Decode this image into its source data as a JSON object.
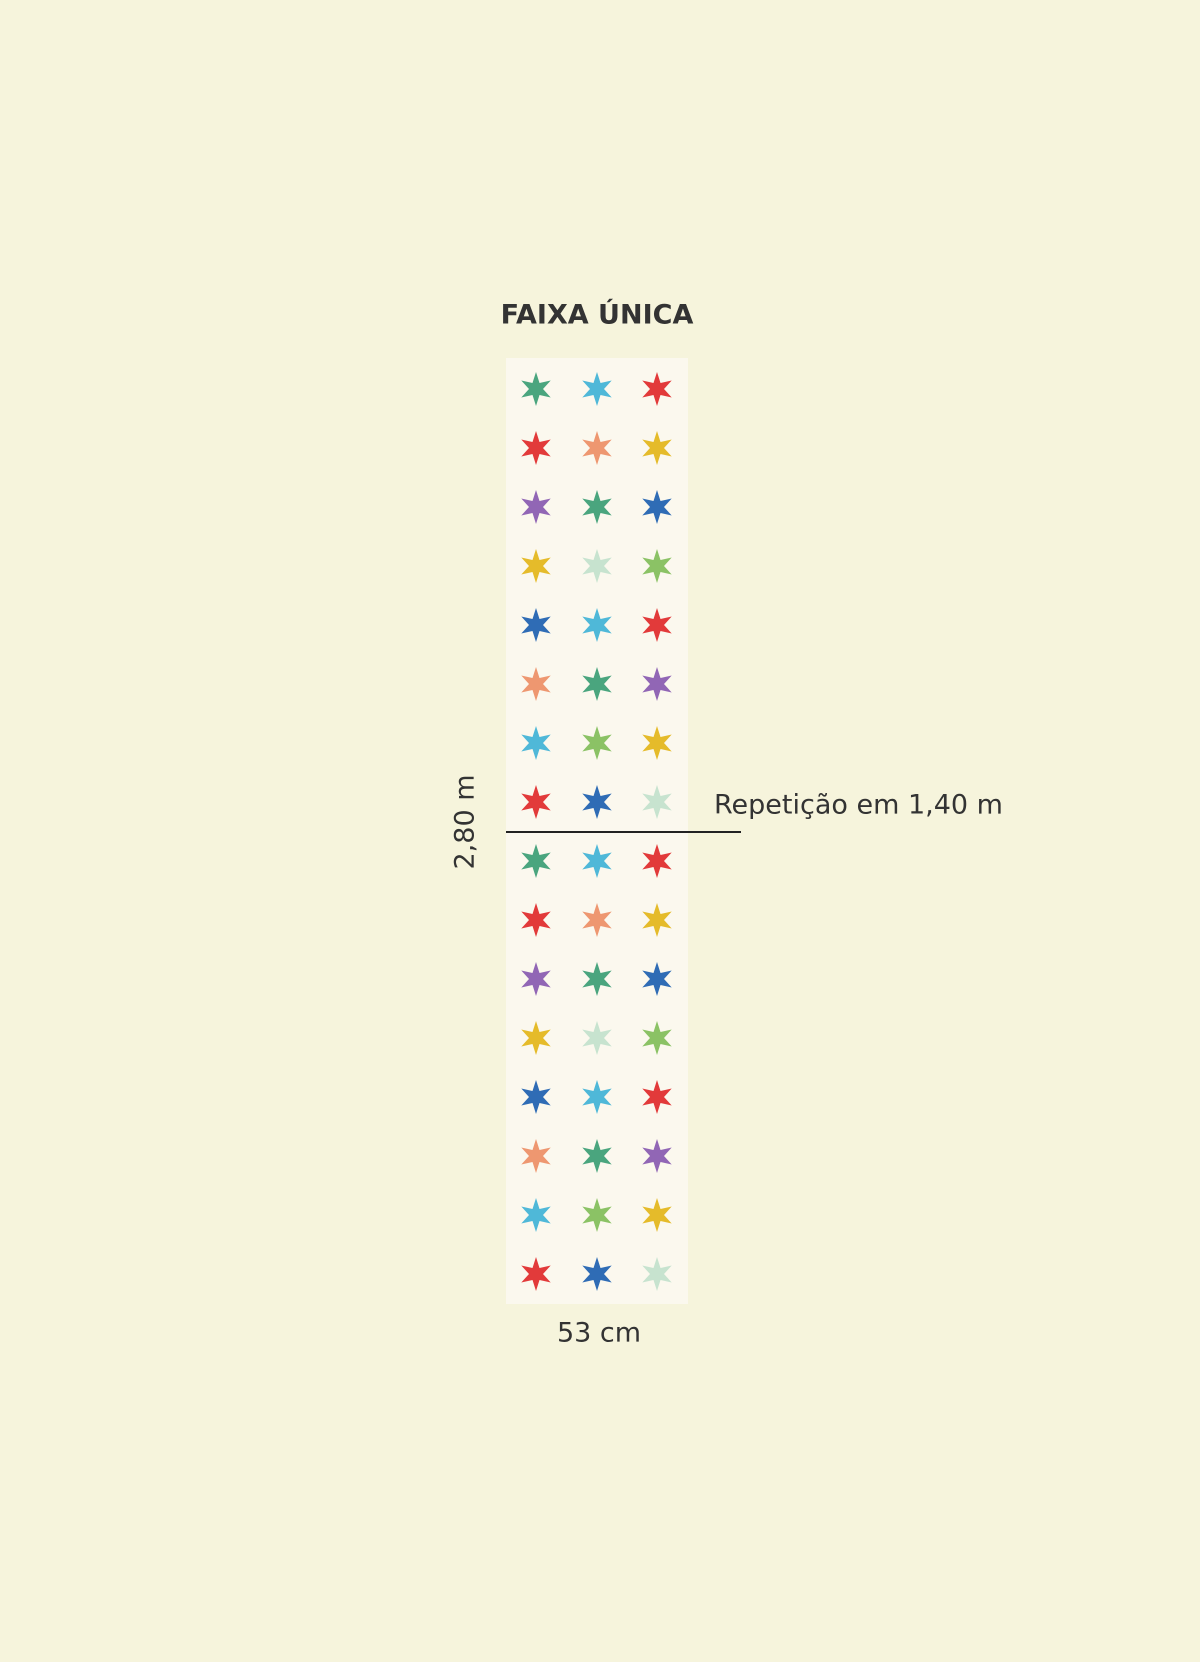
{
  "title": "FAIXA ÚNICA",
  "height_label": "2,80 m",
  "repeat_label": "Repetição em 1,40 m",
  "width_label": "53 cm"
}
